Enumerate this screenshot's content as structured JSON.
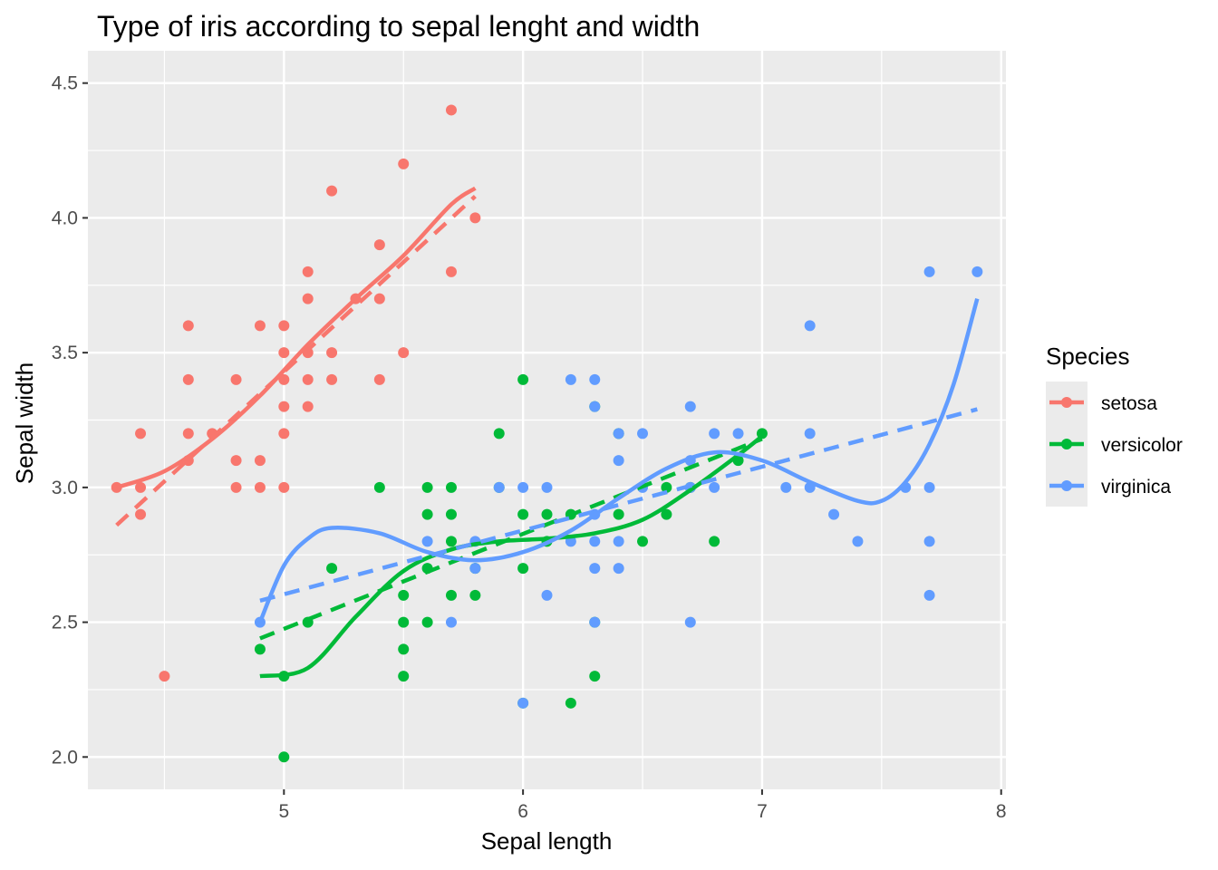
{
  "chart_data": {
    "type": "scatter",
    "title": "Type of iris according to sepal lenght and width",
    "xlabel": "Sepal length",
    "ylabel": "Sepal width",
    "xlim": [
      4.18,
      8.02
    ],
    "ylim": [
      1.88,
      4.62
    ],
    "x_ticks": [
      5,
      6,
      7,
      8
    ],
    "y_ticks": [
      2.0,
      2.5,
      3.0,
      3.5,
      4.0,
      4.5
    ],
    "x_tick_labels": [
      "5",
      "6",
      "7",
      "8"
    ],
    "y_tick_labels": [
      "2.0",
      "2.5",
      "3.0",
      "3.5",
      "4.0",
      "4.5"
    ],
    "grid": true,
    "legend": {
      "title": "Species",
      "position": "right",
      "entries": [
        "setosa",
        "versicolor",
        "virginica"
      ]
    },
    "series": [
      {
        "name": "setosa",
        "color": "#F8766D",
        "points": [
          [
            4.3,
            3.0
          ],
          [
            4.4,
            3.0
          ],
          [
            4.4,
            3.2
          ],
          [
            4.4,
            2.9
          ],
          [
            4.5,
            2.3
          ],
          [
            4.6,
            3.1
          ],
          [
            4.6,
            3.2
          ],
          [
            4.6,
            3.4
          ],
          [
            4.6,
            3.6
          ],
          [
            4.7,
            3.2
          ],
          [
            4.8,
            3.0
          ],
          [
            4.8,
            3.1
          ],
          [
            4.8,
            3.4
          ],
          [
            4.9,
            3.0
          ],
          [
            4.9,
            3.1
          ],
          [
            4.9,
            3.6
          ],
          [
            5.0,
            3.0
          ],
          [
            5.0,
            3.2
          ],
          [
            5.0,
            3.3
          ],
          [
            5.0,
            3.4
          ],
          [
            5.0,
            3.5
          ],
          [
            5.0,
            3.6
          ],
          [
            5.1,
            3.3
          ],
          [
            5.1,
            3.4
          ],
          [
            5.1,
            3.5
          ],
          [
            5.1,
            3.7
          ],
          [
            5.1,
            3.8
          ],
          [
            5.2,
            3.4
          ],
          [
            5.2,
            3.5
          ],
          [
            5.2,
            4.1
          ],
          [
            5.3,
            3.7
          ],
          [
            5.4,
            3.4
          ],
          [
            5.4,
            3.7
          ],
          [
            5.4,
            3.9
          ],
          [
            5.5,
            3.5
          ],
          [
            5.5,
            4.2
          ],
          [
            5.7,
            3.8
          ],
          [
            5.7,
            4.4
          ],
          [
            5.8,
            4.0
          ]
        ],
        "smooth": [
          [
            4.3,
            3.0
          ],
          [
            4.5,
            3.06
          ],
          [
            4.7,
            3.18
          ],
          [
            4.9,
            3.34
          ],
          [
            5.1,
            3.53
          ],
          [
            5.3,
            3.7
          ],
          [
            5.5,
            3.86
          ],
          [
            5.7,
            4.05
          ],
          [
            5.8,
            4.11
          ]
        ],
        "linear": [
          [
            4.3,
            2.86
          ],
          [
            5.8,
            4.08
          ]
        ]
      },
      {
        "name": "versicolor",
        "color": "#00BA38",
        "points": [
          [
            4.9,
            2.4
          ],
          [
            5.0,
            2.0
          ],
          [
            5.0,
            2.3
          ],
          [
            5.1,
            2.5
          ],
          [
            5.2,
            2.7
          ],
          [
            5.4,
            3.0
          ],
          [
            5.5,
            2.3
          ],
          [
            5.5,
            2.4
          ],
          [
            5.5,
            2.5
          ],
          [
            5.5,
            2.6
          ],
          [
            5.6,
            2.5
          ],
          [
            5.6,
            2.7
          ],
          [
            5.6,
            2.9
          ],
          [
            5.6,
            3.0
          ],
          [
            5.7,
            2.6
          ],
          [
            5.7,
            2.8
          ],
          [
            5.7,
            2.9
          ],
          [
            5.7,
            3.0
          ],
          [
            5.8,
            2.6
          ],
          [
            5.8,
            2.7
          ],
          [
            5.9,
            3.0
          ],
          [
            5.9,
            3.2
          ],
          [
            6.0,
            2.2
          ],
          [
            6.0,
            2.7
          ],
          [
            6.0,
            2.9
          ],
          [
            6.0,
            3.4
          ],
          [
            6.1,
            2.8
          ],
          [
            6.1,
            2.9
          ],
          [
            6.2,
            2.2
          ],
          [
            6.2,
            2.9
          ],
          [
            6.3,
            2.3
          ],
          [
            6.3,
            2.5
          ],
          [
            6.3,
            3.3
          ],
          [
            6.4,
            2.9
          ],
          [
            6.4,
            3.2
          ],
          [
            6.5,
            2.8
          ],
          [
            6.6,
            2.9
          ],
          [
            6.6,
            3.0
          ],
          [
            6.7,
            3.0
          ],
          [
            6.8,
            2.8
          ],
          [
            6.9,
            3.1
          ],
          [
            7.0,
            3.2
          ]
        ],
        "smooth": [
          [
            4.9,
            2.3
          ],
          [
            5.1,
            2.33
          ],
          [
            5.3,
            2.52
          ],
          [
            5.5,
            2.69
          ],
          [
            5.7,
            2.77
          ],
          [
            5.9,
            2.8
          ],
          [
            6.1,
            2.81
          ],
          [
            6.3,
            2.83
          ],
          [
            6.5,
            2.88
          ],
          [
            6.7,
            2.99
          ],
          [
            6.9,
            3.12
          ],
          [
            7.0,
            3.19
          ]
        ],
        "linear": [
          [
            4.9,
            2.44
          ],
          [
            7.0,
            3.18
          ]
        ]
      },
      {
        "name": "virginica",
        "color": "#619CFF",
        "points": [
          [
            4.9,
            2.5
          ],
          [
            5.6,
            2.8
          ],
          [
            5.7,
            2.5
          ],
          [
            5.8,
            2.7
          ],
          [
            5.8,
            2.8
          ],
          [
            5.9,
            3.0
          ],
          [
            6.0,
            2.2
          ],
          [
            6.0,
            3.0
          ],
          [
            6.1,
            2.6
          ],
          [
            6.1,
            3.0
          ],
          [
            6.2,
            2.8
          ],
          [
            6.2,
            3.4
          ],
          [
            6.3,
            2.5
          ],
          [
            6.3,
            2.7
          ],
          [
            6.3,
            2.8
          ],
          [
            6.3,
            2.9
          ],
          [
            6.3,
            3.3
          ],
          [
            6.3,
            3.4
          ],
          [
            6.4,
            2.7
          ],
          [
            6.4,
            2.8
          ],
          [
            6.4,
            3.1
          ],
          [
            6.4,
            3.2
          ],
          [
            6.5,
            3.0
          ],
          [
            6.5,
            3.2
          ],
          [
            6.7,
            2.5
          ],
          [
            6.7,
            3.0
          ],
          [
            6.7,
            3.1
          ],
          [
            6.7,
            3.3
          ],
          [
            6.8,
            3.0
          ],
          [
            6.8,
            3.2
          ],
          [
            6.9,
            3.2
          ],
          [
            7.1,
            3.0
          ],
          [
            7.2,
            3.0
          ],
          [
            7.2,
            3.2
          ],
          [
            7.2,
            3.6
          ],
          [
            7.3,
            2.9
          ],
          [
            7.4,
            2.8
          ],
          [
            7.6,
            3.0
          ],
          [
            7.7,
            2.6
          ],
          [
            7.7,
            2.8
          ],
          [
            7.7,
            3.0
          ],
          [
            7.7,
            3.8
          ],
          [
            7.9,
            3.8
          ]
        ],
        "smooth": [
          [
            4.9,
            2.5
          ],
          [
            5.0,
            2.71
          ],
          [
            5.1,
            2.81
          ],
          [
            5.2,
            2.85
          ],
          [
            5.4,
            2.83
          ],
          [
            5.6,
            2.76
          ],
          [
            5.8,
            2.73
          ],
          [
            6.0,
            2.76
          ],
          [
            6.2,
            2.84
          ],
          [
            6.4,
            2.96
          ],
          [
            6.6,
            3.07
          ],
          [
            6.8,
            3.13
          ],
          [
            7.0,
            3.1
          ],
          [
            7.2,
            3.02
          ],
          [
            7.4,
            2.95
          ],
          [
            7.5,
            2.95
          ],
          [
            7.6,
            3.02
          ],
          [
            7.7,
            3.16
          ],
          [
            7.8,
            3.38
          ],
          [
            7.9,
            3.7
          ]
        ],
        "linear": [
          [
            4.9,
            2.58
          ],
          [
            7.9,
            3.29
          ]
        ]
      }
    ]
  }
}
